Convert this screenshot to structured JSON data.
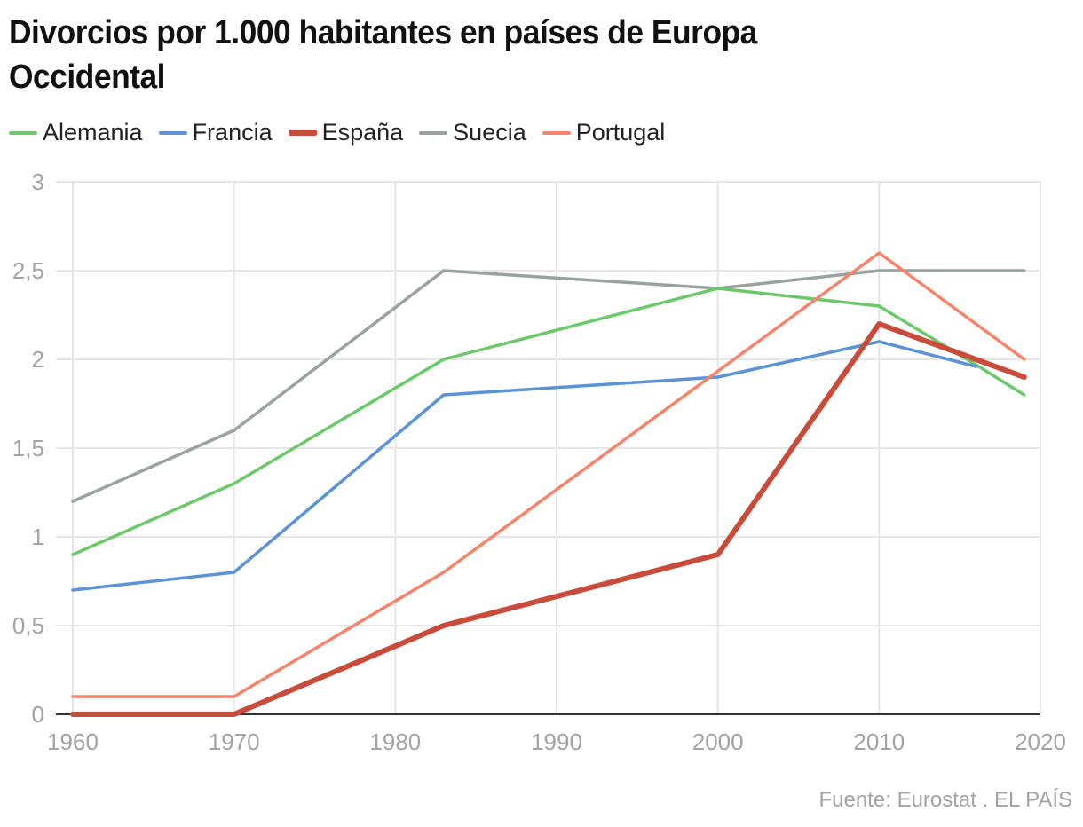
{
  "chart_data": {
    "type": "line",
    "title": "Divorcios por 1.000 habitantes en países de Europa Occidental",
    "xlabel": "",
    "ylabel": "",
    "xlim": [
      1960,
      2020
    ],
    "ylim": [
      0,
      3
    ],
    "x_ticks": [
      "1960",
      "1970",
      "1980",
      "1990",
      "2000",
      "2010",
      "2020"
    ],
    "x_tick_values": [
      1960,
      1970,
      1980,
      1990,
      2000,
      2010,
      2020
    ],
    "y_ticks": [
      "0",
      "0,5",
      "1",
      "1,5",
      "2",
      "2,5",
      "3"
    ],
    "y_tick_values": [
      0,
      0.5,
      1,
      1.5,
      2,
      2.5,
      3
    ],
    "grid": true,
    "legend_position": "top-left",
    "series": [
      {
        "name": "Alemania",
        "color": "#6cc96a",
        "emphasis": false,
        "x": [
          1960,
          1970,
          1983,
          2000,
          2010,
          2016,
          2019
        ],
        "values": [
          0.9,
          1.3,
          2.0,
          2.4,
          2.3,
          1.97,
          1.8
        ]
      },
      {
        "name": "Francia",
        "color": "#5b93d6",
        "emphasis": false,
        "x": [
          1960,
          1970,
          1983,
          2000,
          2010,
          2016
        ],
        "values": [
          0.7,
          0.8,
          1.8,
          1.9,
          2.1,
          1.96
        ]
      },
      {
        "name": "España",
        "color": "#c94c3b",
        "emphasis": true,
        "x": [
          1960,
          1970,
          1983,
          2000,
          2010,
          2019
        ],
        "values": [
          0.0,
          0.0,
          0.5,
          0.9,
          2.2,
          1.9
        ]
      },
      {
        "name": "Suecia",
        "color": "#9aa19f",
        "emphasis": false,
        "x": [
          1960,
          1970,
          1983,
          2000,
          2010,
          2019
        ],
        "values": [
          1.2,
          1.6,
          2.5,
          2.4,
          2.5,
          2.5
        ]
      },
      {
        "name": "Portugal",
        "color": "#f7846a",
        "emphasis": false,
        "x": [
          1960,
          1970,
          1983,
          2010,
          2019
        ],
        "values": [
          0.1,
          0.1,
          0.8,
          2.6,
          2.0
        ]
      }
    ],
    "source": "Fuente: Eurostat . EL PAÍS"
  },
  "title": "Divorcios por 1.000 habitantes en países de Europa Occidental",
  "legend": [
    {
      "label": "Alemania",
      "color": "#6cc96a"
    },
    {
      "label": "Francia",
      "color": "#5b93d6"
    },
    {
      "label": "España",
      "color": "#c94c3b"
    },
    {
      "label": "Suecia",
      "color": "#9aa19f"
    },
    {
      "label": "Portugal",
      "color": "#f7846a"
    }
  ],
  "source": "Fuente: Eurostat . EL PAÍS"
}
